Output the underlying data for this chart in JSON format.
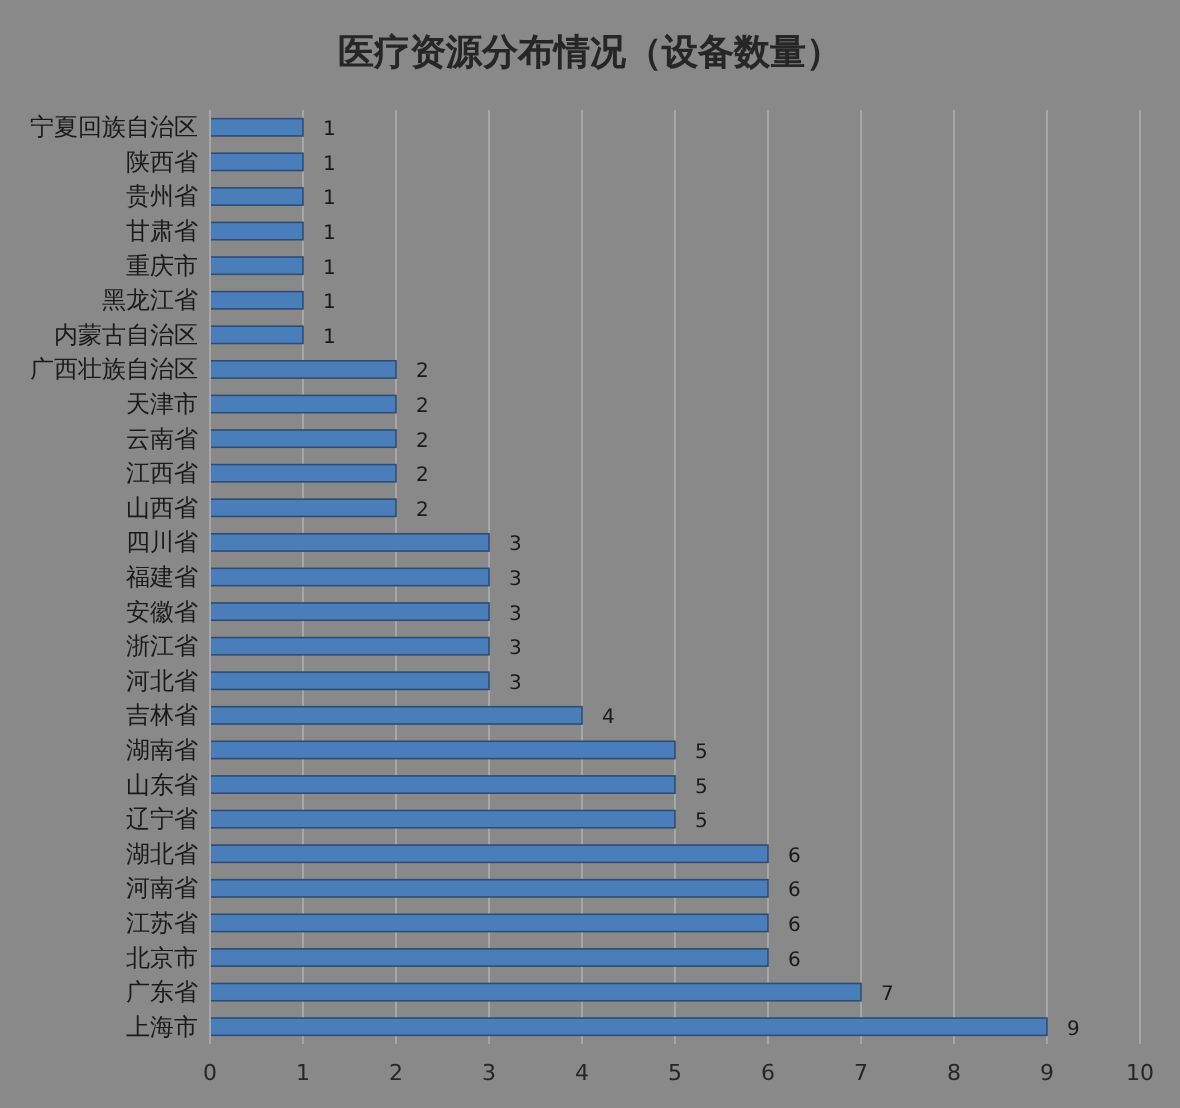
{
  "chart_data": {
    "type": "bar",
    "orientation": "horizontal",
    "title": "医疗资源分布情况（设备数量）",
    "categories": [
      "宁夏回族自治区",
      "陕西省",
      "贵州省",
      "甘肃省",
      "重庆市",
      "黑龙江省",
      "内蒙古自治区",
      "广西壮族自治区",
      "天津市",
      "云南省",
      "江西省",
      "山西省",
      "四川省",
      "福建省",
      "安徽省",
      "浙江省",
      "河北省",
      "吉林省",
      "湖南省",
      "山东省",
      "辽宁省",
      "湖北省",
      "河南省",
      "江苏省",
      "北京市",
      "广东省",
      "上海市"
    ],
    "values": [
      1,
      1,
      1,
      1,
      1,
      1,
      1,
      2,
      2,
      2,
      2,
      2,
      3,
      3,
      3,
      3,
      3,
      4,
      5,
      5,
      5,
      6,
      6,
      6,
      6,
      7,
      9
    ],
    "color": "#4a7ebb",
    "xlim": [
      0,
      10
    ],
    "xticks": [
      0,
      1,
      2,
      3,
      4,
      5,
      6,
      7,
      8,
      9,
      10
    ],
    "grid": "x",
    "data_labels": true
  }
}
